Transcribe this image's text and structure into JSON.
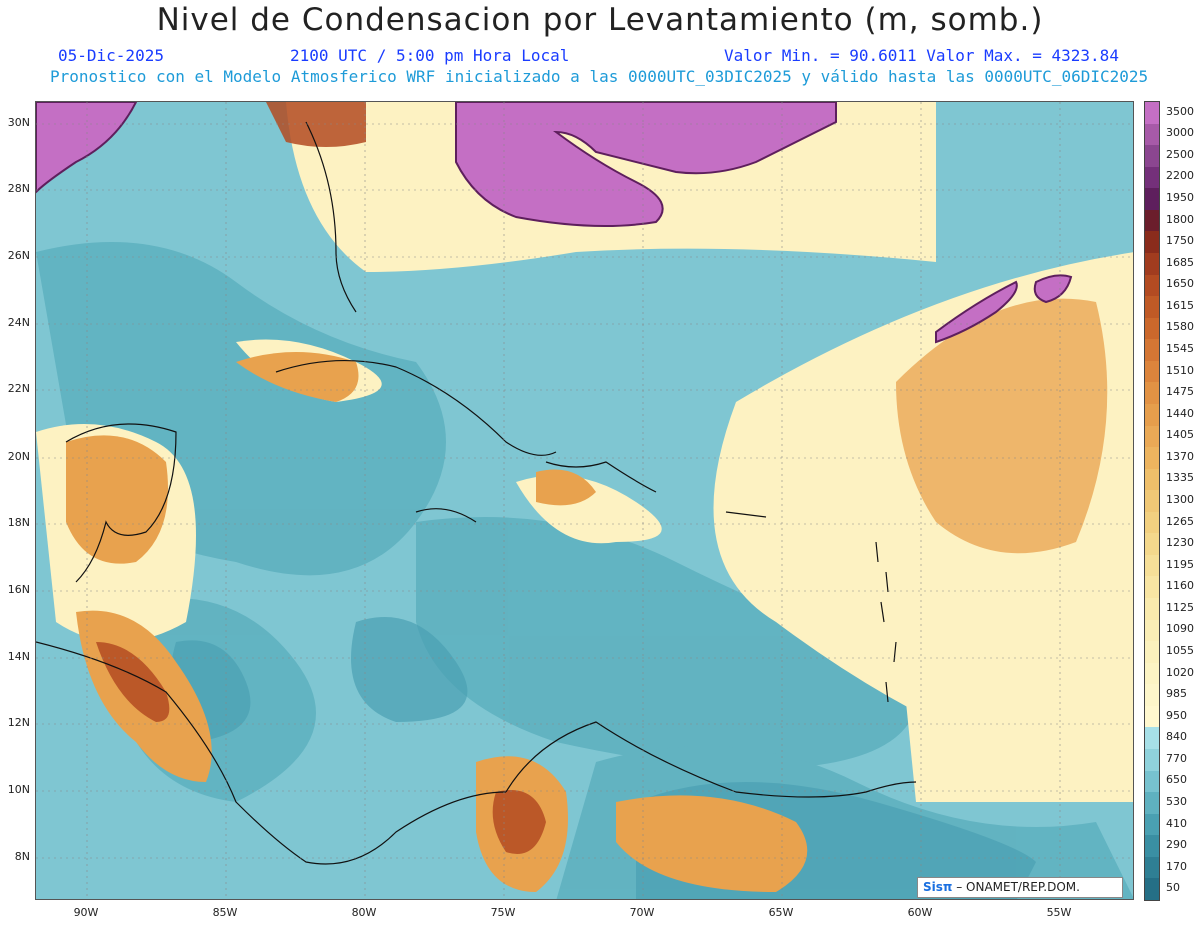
{
  "header": {
    "title": "Nivel de Condensacion por Levantamiento (m, somb.)",
    "date": "05-Dic-2025",
    "time": "2100 UTC / 5:00 pm Hora Local",
    "minmax": "Valor Min. = 90.6011   Valor Max. = 4323.84",
    "model_info": "Pronostico con el Modelo Atmosferico WRF inicializado a las 0000UTC_03DIC2025 y válido hasta las  0000UTC_06DIC2025"
  },
  "map": {
    "lat_labels": [
      "30N",
      "28N",
      "26N",
      "24N",
      "22N",
      "20N",
      "18N",
      "16N",
      "14N",
      "12N",
      "10N",
      "8N"
    ],
    "lon_labels": [
      "90W",
      "85W",
      "80W",
      "75W",
      "70W",
      "65W",
      "60W",
      "55W"
    ]
  },
  "colorbar": {
    "levels": [
      "3500",
      "3000",
      "2500",
      "2200",
      "1950",
      "1800",
      "1750",
      "1685",
      "1650",
      "1615",
      "1580",
      "1545",
      "1510",
      "1475",
      "1440",
      "1405",
      "1370",
      "1335",
      "1300",
      "1265",
      "1230",
      "1195",
      "1160",
      "1125",
      "1090",
      "1055",
      "1020",
      "985",
      "950",
      "840",
      "770",
      "650",
      "530",
      "410",
      "290",
      "170",
      "50"
    ],
    "colors": [
      "#c46fc4",
      "#a75aa8",
      "#8b4690",
      "#74307a",
      "#5e1f5d",
      "#6b1e2c",
      "#8a2c1c",
      "#a13c1f",
      "#b34b22",
      "#c05a26",
      "#cb682c",
      "#d47634",
      "#dc843c",
      "#e29244",
      "#e69e4c",
      "#eaa956",
      "#edb45f",
      "#efbf6a",
      "#f0c876",
      "#f2d080",
      "#f4d88c",
      "#f6df98",
      "#f8e5a3",
      "#f9eaad",
      "#faeeb6",
      "#fbf1bd",
      "#fcf4c4",
      "#fdf6ca",
      "#fff8cf",
      "#a7e0e8",
      "#8fd2dc",
      "#77c2cf",
      "#5fb1c0",
      "#4aa0b2",
      "#3a8fa3",
      "#2f7f94",
      "#256f86"
    ]
  },
  "credit": {
    "brand": "Sisπ",
    "text": "– ONAMET/REP.DOM."
  }
}
